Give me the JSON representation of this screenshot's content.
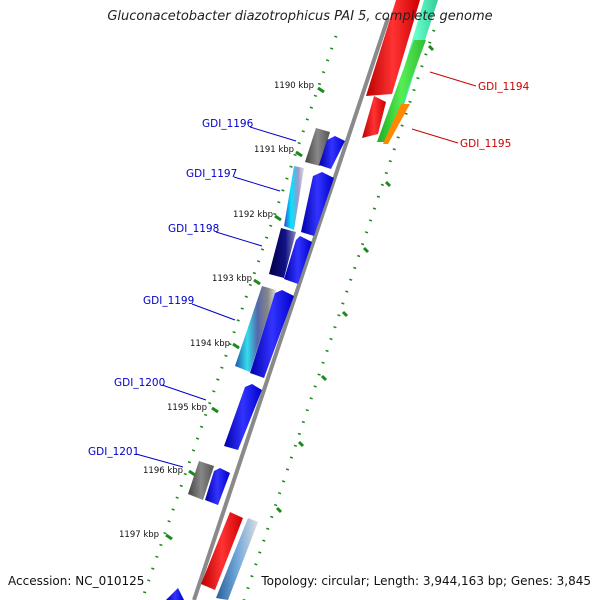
{
  "title": "Gluconacetobacter diazotrophicus PAI 5, complete genome",
  "footer": {
    "accession": "Accession: NC_010125",
    "topology": "Topology: circular; Length: 3,944,163 bp; Genes: 3,845"
  },
  "colors": {
    "backbone": "#8a8a8a",
    "tick": "#1a8a1a",
    "left_label": "#0000cc",
    "right_label": "#cc0000",
    "gene_blue": "#0000ee",
    "gene_red": "#ee0000",
    "gene_green": "#33cc33",
    "gene_orange": "#ff8800",
    "gene_teal": "#33ddaa",
    "gene_gray": "#666666",
    "gene_cyan": "#00e5ff",
    "gene_navy": "#000066",
    "gene_steel": "#4a86c0"
  },
  "kbp_labels": [
    "1190 kbp",
    "1191 kbp",
    "1192 kbp",
    "1193 kbp",
    "1194 kbp",
    "1195 kbp",
    "1196 kbp",
    "1197 kbp"
  ],
  "left_genes": [
    "GDI_1196",
    "GDI_1197",
    "GDI_1198",
    "GDI_1199",
    "GDI_1200",
    "GDI_1201"
  ],
  "right_genes": [
    "GDI_1194",
    "GDI_1195"
  ]
}
